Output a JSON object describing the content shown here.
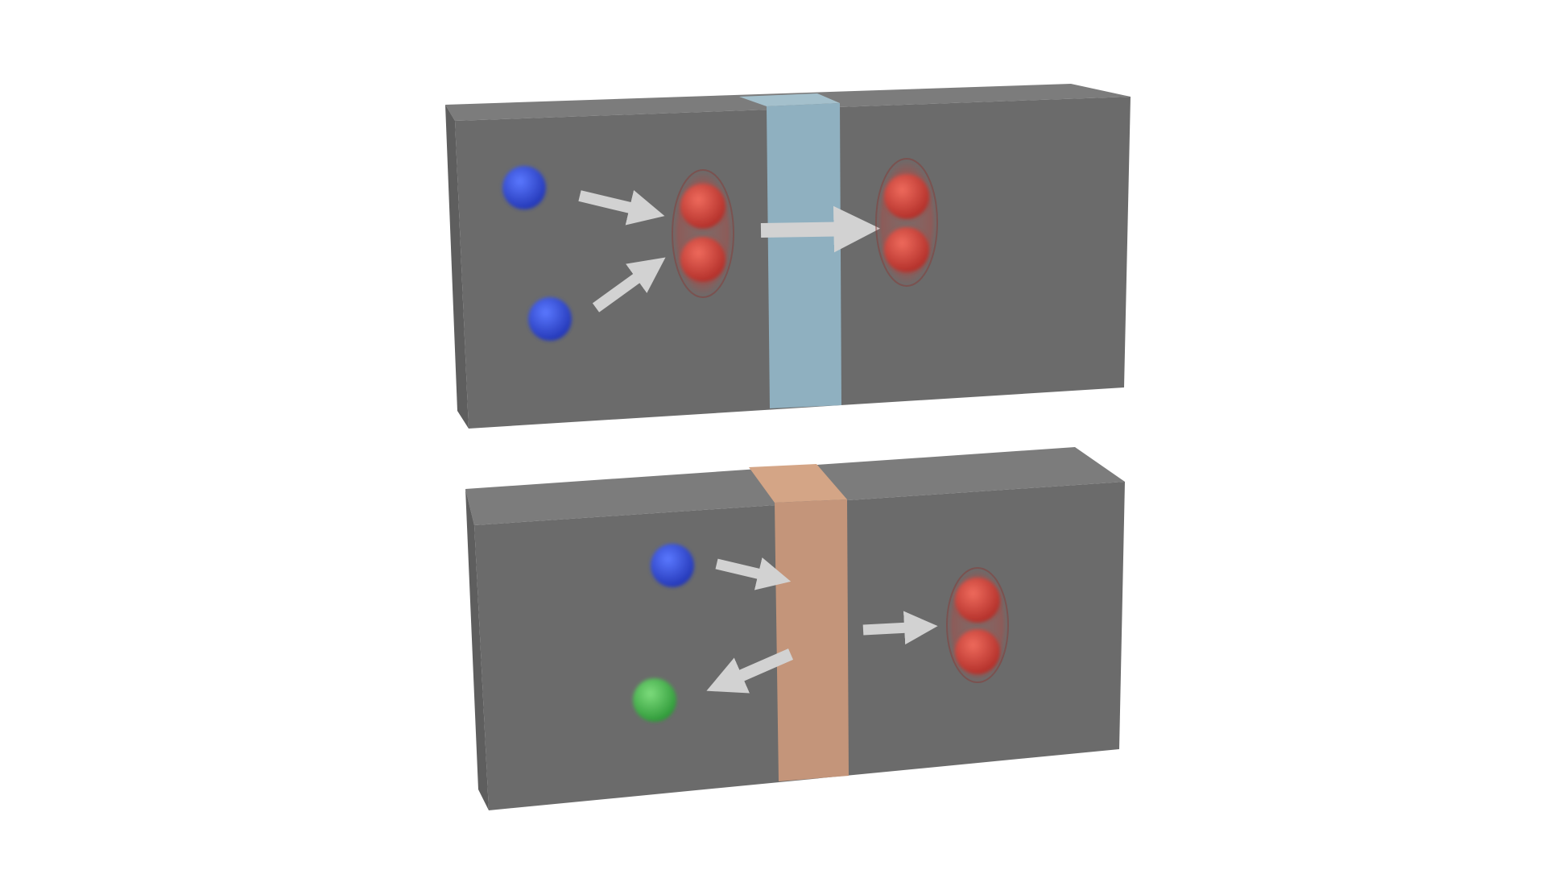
{
  "colors": {
    "background": "#ffffff",
    "block_front": "#6b6b6b",
    "block_top": "#7a7a7a",
    "block_side": "#595959",
    "barrier_top": "#8fb0c0",
    "barrier_bottom": "#c4957a",
    "particle_blue": "#2f4fd8",
    "particle_red": "#d9463c",
    "particle_green": "#45b84a",
    "arrow": "#d2d2d2"
  },
  "panels": [
    {
      "name": "top-block",
      "barrier_color": "#8fb0c0",
      "particles": [
        "blue",
        "blue",
        "red-pair",
        "red-pair"
      ],
      "arrows": 3
    },
    {
      "name": "bottom-block",
      "barrier_color": "#c4957a",
      "particles": [
        "blue",
        "green",
        "red-pair"
      ],
      "arrows": 3
    }
  ]
}
